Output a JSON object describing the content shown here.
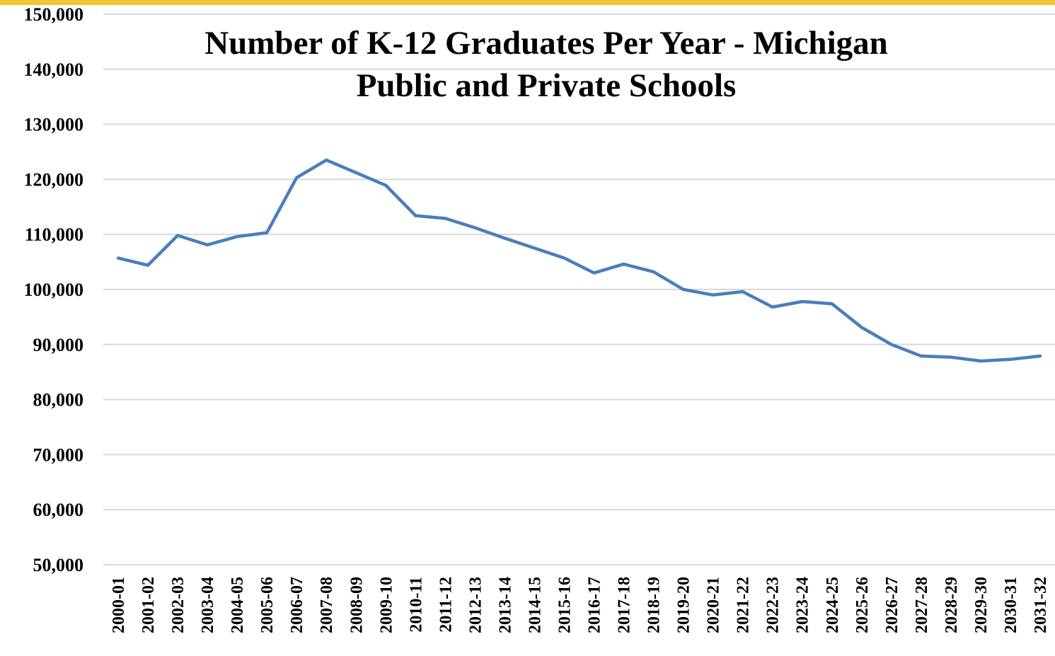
{
  "chart_data": {
    "type": "line",
    "title": [
      "Number of K-12 Graduates Per Year - Michigan",
      "Public and Private Schools"
    ],
    "categories": [
      "2000-01",
      "2001-02",
      "2002-03",
      "2003-04",
      "2004-05",
      "2005-06",
      "2006-07",
      "2007-08",
      "2008-09",
      "2009-10",
      "2010-11",
      "2011-12",
      "2012-13",
      "2013-14",
      "2014-15",
      "2015-16",
      "2016-17",
      "2017-18",
      "2018-19",
      "2019-20",
      "2020-21",
      "2021-22",
      "2022-23",
      "2023-24",
      "2024-25",
      "2025-26",
      "2026-27",
      "2027-28",
      "2028-29",
      "2029-30",
      "2030-31",
      "2031-32"
    ],
    "series": [
      {
        "color": "#4a7ebb",
        "values": [
          105700,
          104400,
          109800,
          108100,
          109600,
          110300,
          120300,
          123500,
          121200,
          118900,
          113400,
          112900,
          111200,
          109300,
          107500,
          105700,
          103000,
          104600,
          103200,
          100000,
          99000,
          99600,
          96800,
          97800,
          97400,
          93100,
          90000,
          87900,
          87700,
          87000,
          87300,
          87900
        ]
      }
    ],
    "ylim": [
      50000,
      150000
    ],
    "yticks": [
      {
        "value": 50000,
        "label": "50,000"
      },
      {
        "value": 60000,
        "label": "60,000"
      },
      {
        "value": 70000,
        "label": "70,000"
      },
      {
        "value": 80000,
        "label": "80,000"
      },
      {
        "value": 90000,
        "label": "90,000"
      },
      {
        "value": 100000,
        "label": "100,000"
      },
      {
        "value": 110000,
        "label": "110,000"
      },
      {
        "value": 120000,
        "label": "120,000"
      },
      {
        "value": 130000,
        "label": "130,000"
      },
      {
        "value": 140000,
        "label": "140,000"
      },
      {
        "value": 150000,
        "label": "150,000"
      }
    ],
    "grid": true
  }
}
